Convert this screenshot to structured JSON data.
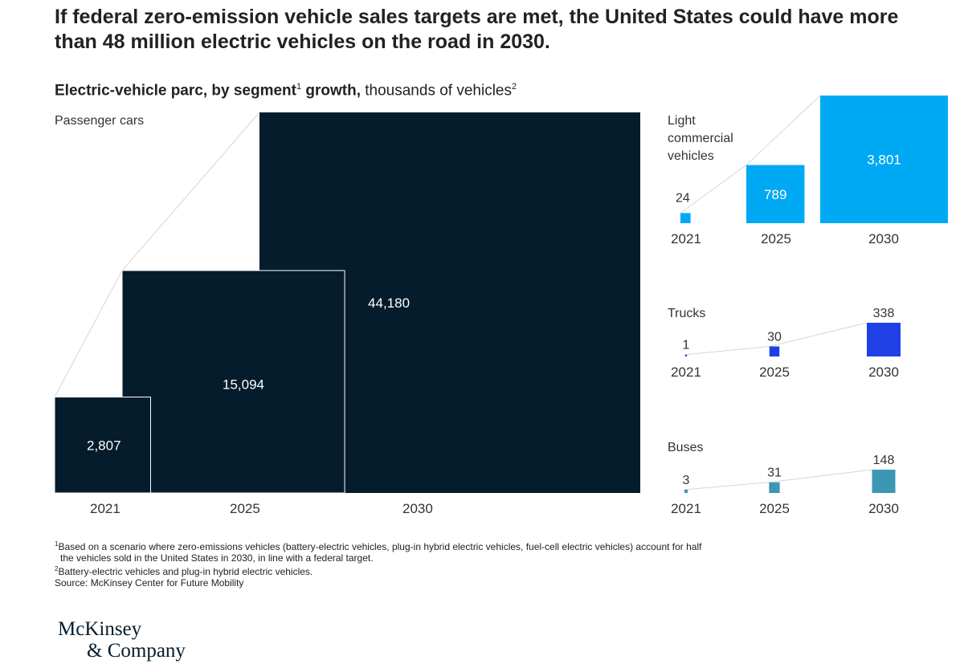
{
  "title": "If federal zero-emission vehicle sales targets are met, the United States could have more than 48 million electric vehicles on the road in 2030.",
  "subtitle": {
    "bold1": "Electric-vehicle parc, by segment",
    "sup1": "1",
    "bold2": " growth,",
    "normal": " thousands of vehicles",
    "sup2": "2"
  },
  "chart_data": [
    {
      "type": "bar",
      "title": "Passenger cars",
      "categories": [
        "2021",
        "2025",
        "2030"
      ],
      "values": [
        2807,
        15094,
        44180
      ],
      "value_labels": [
        "2,807",
        "15,094",
        "44,180"
      ],
      "color": "#051c2c"
    },
    {
      "type": "bar",
      "title": "Light commercial vehicles",
      "categories": [
        "2021",
        "2025",
        "2030"
      ],
      "values": [
        24,
        789,
        3801
      ],
      "value_labels": [
        "24",
        "789",
        "3,801"
      ],
      "color": "#00a9f4"
    },
    {
      "type": "bar",
      "title": "Trucks",
      "categories": [
        "2021",
        "2025",
        "2030"
      ],
      "values": [
        1,
        30,
        338
      ],
      "value_labels": [
        "1",
        "30",
        "338"
      ],
      "color": "#1f40e6"
    },
    {
      "type": "bar",
      "title": "Buses",
      "categories": [
        "2021",
        "2025",
        "2030"
      ],
      "values": [
        3,
        31,
        148
      ],
      "value_labels": [
        "3",
        "31",
        "148"
      ],
      "color": "#3c96b4"
    }
  ],
  "footnotes": {
    "fn1_mark": "1",
    "fn1_line1": "Based on a scenario where zero-emissions vehicles (battery-electric vehicles, plug-in hybrid electric vehicles, fuel-cell electric vehicles) account for half",
    "fn1_line2": "the vehicles sold in the United States in 2030, in line with a federal target.",
    "fn2_mark": "2",
    "fn2_text": "Battery-electric vehicles and plug-in hybrid electric vehicles.",
    "source": "Source: McKinsey Center for Future Mobility"
  },
  "logo": {
    "line1": "McKinsey",
    "line2": "& Company"
  }
}
